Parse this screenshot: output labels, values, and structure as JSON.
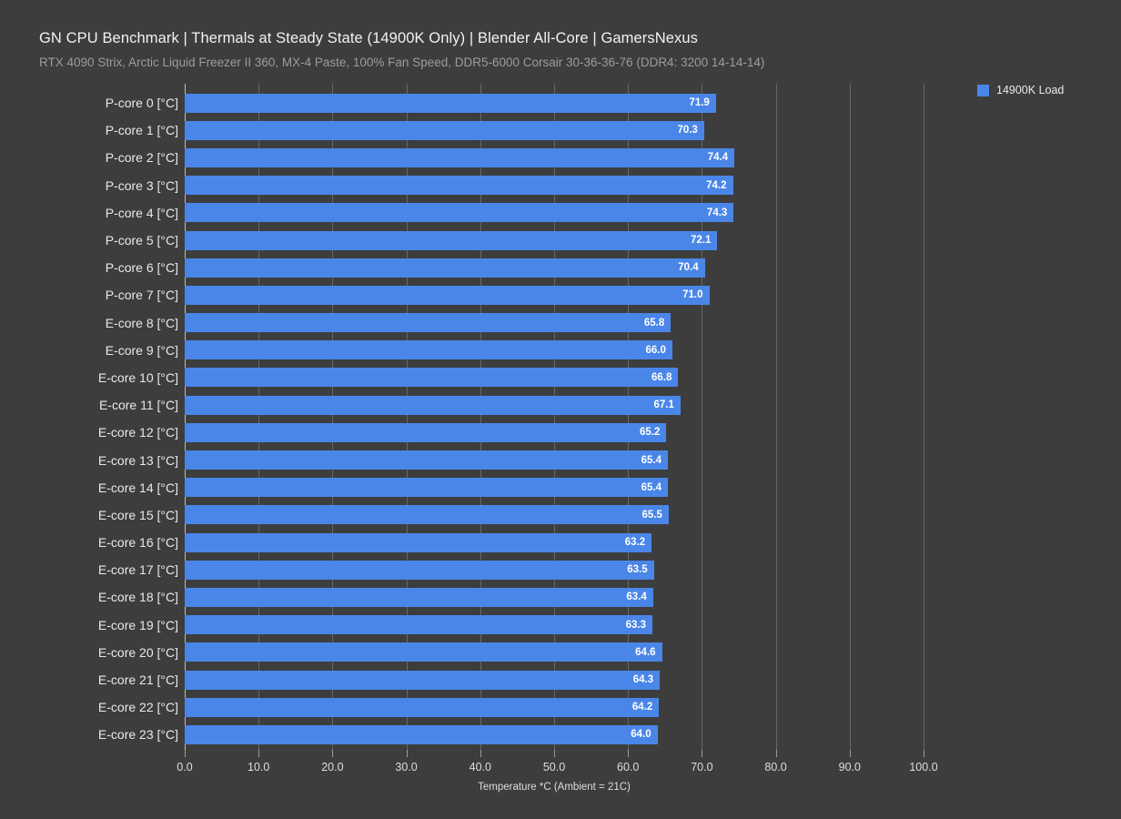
{
  "header": {
    "title": "GN CPU Benchmark | Thermals at Steady State (14900K Only) | Blender All-Core | GamersNexus",
    "subtitle": "RTX 4090 Strix, Arctic Liquid Freezer II 360, MX-4 Paste, 100% Fan Speed, DDR5-6000 Corsair 30-36-36-76 (DDR4: 3200 14-14-14)"
  },
  "legend": {
    "items": [
      {
        "label": "14900K Load",
        "color": "#4a86e8"
      }
    ],
    "position": "top-right"
  },
  "chart_data": {
    "type": "bar",
    "orientation": "horizontal",
    "title": "GN CPU Benchmark | Thermals at Steady State (14900K Only) | Blender All-Core | GamersNexus",
    "subtitle": "RTX 4090 Strix, Arctic Liquid Freezer II 360, MX-4 Paste, 100% Fan Speed, DDR5-6000 Corsair 30-36-36-76 (DDR4: 3200 14-14-14)",
    "categories": [
      "P-core 0 [°C]",
      "P-core 1 [°C]",
      "P-core 2 [°C]",
      "P-core 3 [°C]",
      "P-core 4 [°C]",
      "P-core 5 [°C]",
      "P-core 6 [°C]",
      "P-core 7 [°C]",
      "E-core 8 [°C]",
      "E-core 9 [°C]",
      "E-core 10 [°C]",
      "E-core 11 [°C]",
      "E-core 12 [°C]",
      "E-core 13 [°C]",
      "E-core 14 [°C]",
      "E-core 15 [°C]",
      "E-core 16 [°C]",
      "E-core 17 [°C]",
      "E-core 18 [°C]",
      "E-core 19 [°C]",
      "E-core 20 [°C]",
      "E-core 21 [°C]",
      "E-core 22 [°C]",
      "E-core 23 [°C]"
    ],
    "series": [
      {
        "name": "14900K Load",
        "color": "#4a86e8",
        "values": [
          71.9,
          70.3,
          74.4,
          74.2,
          74.3,
          72.1,
          70.4,
          71.0,
          65.8,
          66.0,
          66.8,
          67.1,
          65.2,
          65.4,
          65.4,
          65.5,
          63.2,
          63.5,
          63.4,
          63.3,
          64.6,
          64.3,
          64.2,
          64.0
        ]
      }
    ],
    "xlabel": "Temperature *C (Ambient = 21C)",
    "ylabel": "",
    "xlim": [
      0,
      100
    ],
    "xticks": [
      "0.0",
      "10.0",
      "20.0",
      "30.0",
      "40.0",
      "50.0",
      "60.0",
      "70.0",
      "80.0",
      "90.0",
      "100.0"
    ],
    "grid": "vertical",
    "legend_position": "top-right",
    "value_label_decimals": 1
  },
  "colors": {
    "background": "#3d3d3d",
    "bar": "#4a86e8",
    "gridline": "#666666",
    "axis_line": "#bdbdbd",
    "title_text": "#f2f2f2",
    "subtitle_text": "#9c9c9c",
    "value_text": "#ffffff"
  }
}
